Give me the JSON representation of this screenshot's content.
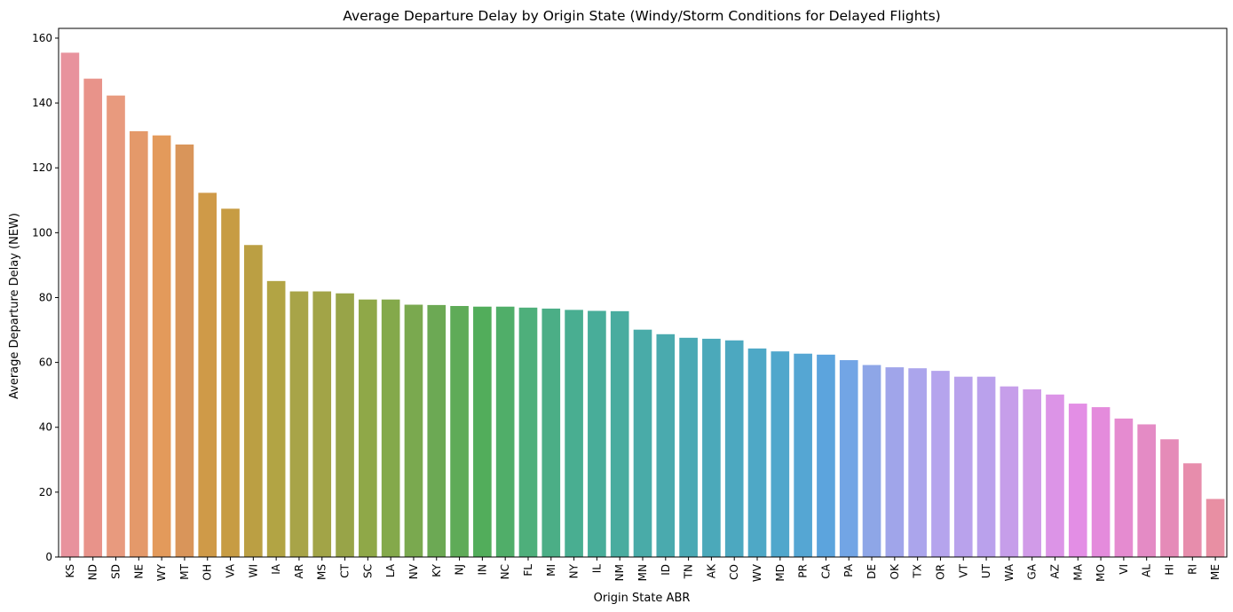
{
  "chart_data": {
    "type": "bar",
    "title": "Average Departure Delay by Origin State (Windy/Storm Conditions for Delayed Flights)",
    "xlabel": "Origin State ABR",
    "ylabel": "Average Departure Delay (NEW)",
    "ylim": [
      0,
      163
    ],
    "yticks": [
      0,
      20,
      40,
      60,
      80,
      100,
      120,
      140,
      160
    ],
    "categories": [
      "KS",
      "ND",
      "SD",
      "NE",
      "WY",
      "MT",
      "OH",
      "VA",
      "WI",
      "IA",
      "AR",
      "MS",
      "CT",
      "SC",
      "LA",
      "NV",
      "KY",
      "NJ",
      "IN",
      "NC",
      "FL",
      "MI",
      "NY",
      "IL",
      "NM",
      "MN",
      "ID",
      "TN",
      "AK",
      "CO",
      "WV",
      "MD",
      "PR",
      "CA",
      "PA",
      "DE",
      "OK",
      "TX",
      "OR",
      "VT",
      "UT",
      "WA",
      "GA",
      "AZ",
      "MA",
      "MO",
      "VI",
      "AL",
      "HI",
      "RI",
      "ME"
    ],
    "values": [
      155.5,
      147.5,
      142.3,
      131.3,
      130.0,
      127.2,
      112.3,
      107.4,
      96.2,
      85.1,
      81.9,
      81.9,
      81.3,
      79.4,
      79.4,
      77.8,
      77.7,
      77.4,
      77.2,
      77.2,
      76.9,
      76.6,
      76.2,
      75.9,
      75.8,
      70.1,
      68.7,
      67.6,
      67.3,
      66.8,
      64.3,
      63.4,
      62.7,
      62.4,
      60.7,
      59.2,
      58.5,
      58.2,
      57.4,
      55.6,
      55.6,
      52.6,
      51.7,
      50.1,
      47.3,
      46.2,
      42.7,
      40.9,
      36.3,
      28.9,
      17.9
    ],
    "colors": [
      "#e8929d",
      "#e8938a",
      "#e89a7e",
      "#e4996a",
      "#e39a5b",
      "#d9955a",
      "#cf9a48",
      "#c79c43",
      "#bb9f43",
      "#b2a444",
      "#a8a448",
      "#a2a447",
      "#98a448",
      "#8fa848",
      "#84a94b",
      "#7aa94f",
      "#6ca954",
      "#5fab58",
      "#52ad5b",
      "#50ae69",
      "#4eaf7b",
      "#4bae86",
      "#49ae91",
      "#48ad99",
      "#49ac9f",
      "#49aba8",
      "#4aaaae",
      "#4aa9b4",
      "#4ba9ba",
      "#4ca8c0",
      "#4ea8c6",
      "#50a7cc",
      "#55a6d3",
      "#5ca4dd",
      "#72a5e5",
      "#8ea6e7",
      "#a0a5ea",
      "#aba5ec",
      "#b5a4ed",
      "#b9a2ec",
      "#baa1ec",
      "#c69eea",
      "#d19be8",
      "#dc94e7",
      "#e38ee5",
      "#e48bdc",
      "#e58bd0",
      "#e48bc5",
      "#e58bb8",
      "#e78dac",
      "#e88fa3"
    ]
  }
}
